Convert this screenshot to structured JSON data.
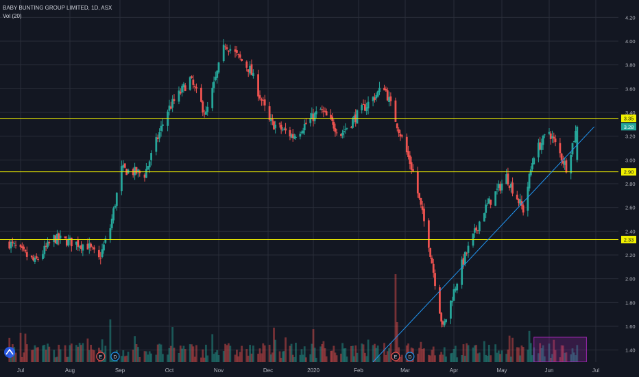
{
  "legend": {
    "symbol": "BABY BUNTING GROUP LIMITED, 1D, ASX",
    "volume": "Vol (20)"
  },
  "chart_data": {
    "type": "candlestick",
    "symbol": "BABY BUNTING GROUP LIMITED",
    "interval": "1D",
    "exchange": "ASX",
    "ylim": [
      1.3,
      4.3
    ],
    "y_ticks": [
      "1.40",
      "1.60",
      "1.80",
      "2.00",
      "2.20",
      "2.40",
      "2.60",
      "2.80",
      "3.00",
      "3.20",
      "3.40",
      "3.60",
      "3.80",
      "4.00",
      "4.20"
    ],
    "x_ticks": [
      "Jul",
      "Aug",
      "Sep",
      "Oct",
      "Nov",
      "Dec",
      "2020",
      "Feb",
      "Mar",
      "Apr",
      "May",
      "Jun",
      "Jul"
    ],
    "date_range": [
      "2019-06-24",
      "2020-06-19"
    ],
    "price_path_approx": [
      {
        "date": "2019-06-24",
        "close": 2.3
      },
      {
        "date": "2019-07-10",
        "close": 2.14
      },
      {
        "date": "2019-07-22",
        "close": 2.34
      },
      {
        "date": "2019-08-12",
        "close": 2.28
      },
      {
        "date": "2019-08-19",
        "close": 2.16
      },
      {
        "date": "2019-08-26",
        "close": 2.43
      },
      {
        "date": "2019-09-02",
        "close": 2.92
      },
      {
        "date": "2019-09-16",
        "close": 2.88
      },
      {
        "date": "2019-09-30",
        "close": 3.42
      },
      {
        "date": "2019-10-14",
        "close": 3.68
      },
      {
        "date": "2019-10-24",
        "close": 3.38
      },
      {
        "date": "2019-11-05",
        "close": 3.98
      },
      {
        "date": "2019-11-20",
        "close": 3.76
      },
      {
        "date": "2019-12-02",
        "close": 3.32
      },
      {
        "date": "2019-12-18",
        "close": 3.2
      },
      {
        "date": "2020-01-06",
        "close": 3.42
      },
      {
        "date": "2020-01-20",
        "close": 3.22
      },
      {
        "date": "2020-02-03",
        "close": 3.42
      },
      {
        "date": "2020-02-17",
        "close": 3.62
      },
      {
        "date": "2020-02-25",
        "close": 3.3
      },
      {
        "date": "2020-03-06",
        "close": 2.9
      },
      {
        "date": "2020-03-16",
        "close": 2.3
      },
      {
        "date": "2020-03-25",
        "close": 1.58
      },
      {
        "date": "2020-04-06",
        "close": 2.12
      },
      {
        "date": "2020-04-20",
        "close": 2.58
      },
      {
        "date": "2020-05-04",
        "close": 2.86
      },
      {
        "date": "2020-05-15",
        "close": 2.58
      },
      {
        "date": "2020-05-22",
        "close": 3.05
      },
      {
        "date": "2020-06-01",
        "close": 3.24
      },
      {
        "date": "2020-06-12",
        "close": 2.94
      },
      {
        "date": "2020-06-19",
        "close": 3.28
      }
    ],
    "horizontal_lines": [
      {
        "price": 3.35,
        "label": "3.35",
        "color": "#f0f000"
      },
      {
        "price": 2.9,
        "label": "2.90",
        "color": "#f0f000"
      },
      {
        "price": 2.33,
        "label": "2.33",
        "color": "#f0f000"
      }
    ],
    "last_price": {
      "price": 3.28,
      "label": "3.28",
      "color": "#26a69a"
    },
    "trendline": {
      "from": {
        "date": "2020-02-10",
        "price": 1.3
      },
      "to": {
        "date": "2020-06-30",
        "price": 3.28
      },
      "color": "#2196f3"
    },
    "event_markers": [
      {
        "date": "2019-08-20",
        "letter": "E"
      },
      {
        "date": "2019-08-29",
        "letter": "D"
      },
      {
        "date": "2020-02-24",
        "letter": "E"
      },
      {
        "date": "2020-03-04",
        "letter": "D"
      }
    ],
    "colors": {
      "up": "#26a69a",
      "down": "#ef5350",
      "background": "#131722",
      "grid": "#2a2e39",
      "text": "#b2b5be",
      "highlight_box": "#9c27b0"
    },
    "grid": true
  }
}
